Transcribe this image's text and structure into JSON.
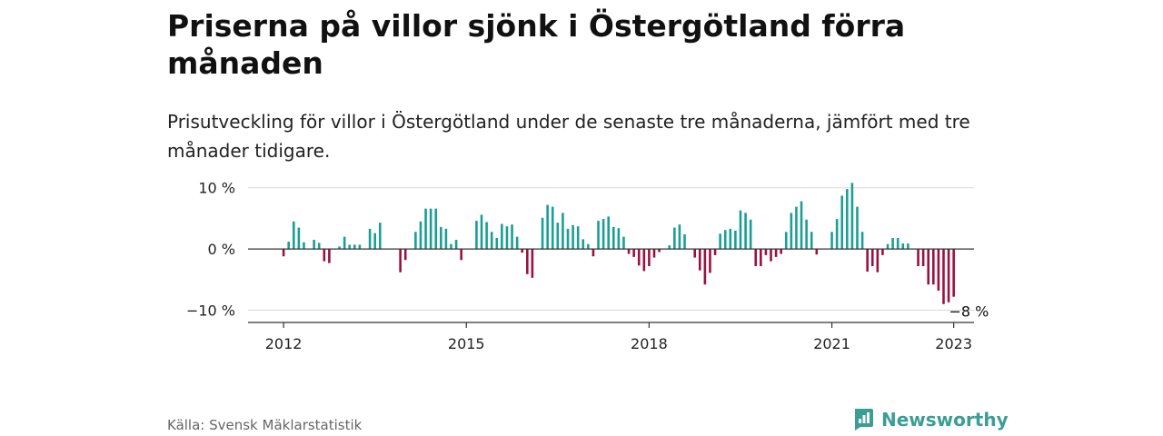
{
  "title": "Priserna på villor sjönk i Östergötland förra månaden",
  "subtitle": "Prisutveckling för villor i Östergötland under de senaste tre månaderna, jämfört med tre månader tidigare.",
  "source": "Källa: Svensk Mäklarstatistik",
  "brand": "Newsworthy",
  "colors": {
    "positive": "#1a9e95",
    "negative": "#99123f",
    "brand": "#3a9e96"
  },
  "chart_data": {
    "type": "bar",
    "xlim": [
      "2011-06",
      "2023-05"
    ],
    "ylim": [
      -12,
      11
    ],
    "y_ticks": [
      {
        "value": 10,
        "label": "10 %"
      },
      {
        "value": 0,
        "label": "0 %"
      },
      {
        "value": -10,
        "label": "−10 %"
      }
    ],
    "x_ticks": [
      {
        "value": "2012-01",
        "label": "2012"
      },
      {
        "value": "2015-01",
        "label": "2015"
      },
      {
        "value": "2018-01",
        "label": "2018"
      },
      {
        "value": "2021-01",
        "label": "2021"
      },
      {
        "value": "2023-01",
        "label": "2023"
      }
    ],
    "grid": true,
    "annotation": {
      "month": "2023-04",
      "value": -8,
      "text": "−8 %"
    },
    "values": [
      {
        "month": "2012-01",
        "value": -1.2
      },
      {
        "month": "2012-02",
        "value": 1.2
      },
      {
        "month": "2012-03",
        "value": 4.5
      },
      {
        "month": "2012-04",
        "value": 3.5
      },
      {
        "month": "2012-05",
        "value": 1.1
      },
      {
        "month": "2012-07",
        "value": 1.5
      },
      {
        "month": "2012-08",
        "value": 1.0
      },
      {
        "month": "2012-09",
        "value": -2.0
      },
      {
        "month": "2012-10",
        "value": -2.3
      },
      {
        "month": "2012-12",
        "value": 0.4
      },
      {
        "month": "2013-01",
        "value": 2.0
      },
      {
        "month": "2013-02",
        "value": 0.7
      },
      {
        "month": "2013-03",
        "value": 0.7
      },
      {
        "month": "2013-04",
        "value": 0.7
      },
      {
        "month": "2013-06",
        "value": 3.3
      },
      {
        "month": "2013-07",
        "value": 2.6
      },
      {
        "month": "2013-08",
        "value": 4.3
      },
      {
        "month": "2013-12",
        "value": -3.8
      },
      {
        "month": "2014-01",
        "value": -1.8
      },
      {
        "month": "2014-03",
        "value": 2.8
      },
      {
        "month": "2014-04",
        "value": 4.5
      },
      {
        "month": "2014-05",
        "value": 6.6
      },
      {
        "month": "2014-06",
        "value": 6.6
      },
      {
        "month": "2014-07",
        "value": 6.6
      },
      {
        "month": "2014-08",
        "value": 3.6
      },
      {
        "month": "2014-09",
        "value": 3.3
      },
      {
        "month": "2014-10",
        "value": 0.8
      },
      {
        "month": "2014-11",
        "value": 1.5
      },
      {
        "month": "2014-12",
        "value": -1.8
      },
      {
        "month": "2015-03",
        "value": 4.6
      },
      {
        "month": "2015-04",
        "value": 5.6
      },
      {
        "month": "2015-05",
        "value": 4.4
      },
      {
        "month": "2015-06",
        "value": 2.8
      },
      {
        "month": "2015-07",
        "value": 1.8
      },
      {
        "month": "2015-08",
        "value": 4.1
      },
      {
        "month": "2015-09",
        "value": 3.7
      },
      {
        "month": "2015-10",
        "value": 4.0
      },
      {
        "month": "2015-11",
        "value": 2.0
      },
      {
        "month": "2015-12",
        "value": -0.6
      },
      {
        "month": "2016-01",
        "value": -4.1
      },
      {
        "month": "2016-02",
        "value": -4.7
      },
      {
        "month": "2016-04",
        "value": 5.1
      },
      {
        "month": "2016-05",
        "value": 7.2
      },
      {
        "month": "2016-06",
        "value": 6.9
      },
      {
        "month": "2016-07",
        "value": 4.3
      },
      {
        "month": "2016-08",
        "value": 5.9
      },
      {
        "month": "2016-09",
        "value": 3.3
      },
      {
        "month": "2016-10",
        "value": 3.9
      },
      {
        "month": "2016-11",
        "value": 3.7
      },
      {
        "month": "2016-12",
        "value": 1.6
      },
      {
        "month": "2017-01",
        "value": 0.8
      },
      {
        "month": "2017-02",
        "value": -1.2
      },
      {
        "month": "2017-03",
        "value": 4.6
      },
      {
        "month": "2017-04",
        "value": 4.9
      },
      {
        "month": "2017-05",
        "value": 5.3
      },
      {
        "month": "2017-06",
        "value": 3.6
      },
      {
        "month": "2017-07",
        "value": 3.4
      },
      {
        "month": "2017-08",
        "value": 2.0
      },
      {
        "month": "2017-09",
        "value": -0.8
      },
      {
        "month": "2017-10",
        "value": -1.3
      },
      {
        "month": "2017-11",
        "value": -2.7
      },
      {
        "month": "2017-12",
        "value": -3.6
      },
      {
        "month": "2018-01",
        "value": -2.8
      },
      {
        "month": "2018-02",
        "value": -1.4
      },
      {
        "month": "2018-03",
        "value": -0.5
      },
      {
        "month": "2018-05",
        "value": 0.6
      },
      {
        "month": "2018-06",
        "value": 3.5
      },
      {
        "month": "2018-07",
        "value": 4.0
      },
      {
        "month": "2018-08",
        "value": 2.4
      },
      {
        "month": "2018-10",
        "value": -1.4
      },
      {
        "month": "2018-11",
        "value": -3.5
      },
      {
        "month": "2018-12",
        "value": -5.8
      },
      {
        "month": "2019-01",
        "value": -3.9
      },
      {
        "month": "2019-02",
        "value": -1.0
      },
      {
        "month": "2019-03",
        "value": 2.5
      },
      {
        "month": "2019-04",
        "value": 3.1
      },
      {
        "month": "2019-05",
        "value": 3.3
      },
      {
        "month": "2019-06",
        "value": 3.0
      },
      {
        "month": "2019-07",
        "value": 6.3
      },
      {
        "month": "2019-08",
        "value": 5.9
      },
      {
        "month": "2019-09",
        "value": 4.8
      },
      {
        "month": "2019-10",
        "value": -2.8
      },
      {
        "month": "2019-11",
        "value": -2.8
      },
      {
        "month": "2019-12",
        "value": -1.0
      },
      {
        "month": "2020-01",
        "value": -2.0
      },
      {
        "month": "2020-02",
        "value": -1.3
      },
      {
        "month": "2020-03",
        "value": -0.8
      },
      {
        "month": "2020-04",
        "value": 2.8
      },
      {
        "month": "2020-05",
        "value": 5.9
      },
      {
        "month": "2020-06",
        "value": 6.9
      },
      {
        "month": "2020-07",
        "value": 7.8
      },
      {
        "month": "2020-08",
        "value": 4.8
      },
      {
        "month": "2020-09",
        "value": 2.8
      },
      {
        "month": "2020-10",
        "value": -0.9
      },
      {
        "month": "2021-01",
        "value": 2.8
      },
      {
        "month": "2021-02",
        "value": 4.9
      },
      {
        "month": "2021-03",
        "value": 8.7
      },
      {
        "month": "2021-04",
        "value": 9.8
      },
      {
        "month": "2021-05",
        "value": 10.8
      },
      {
        "month": "2021-06",
        "value": 6.9
      },
      {
        "month": "2021-07",
        "value": 2.8
      },
      {
        "month": "2021-08",
        "value": -3.7
      },
      {
        "month": "2021-09",
        "value": -2.8
      },
      {
        "month": "2021-10",
        "value": -3.8
      },
      {
        "month": "2021-11",
        "value": -1.0
      },
      {
        "month": "2021-12",
        "value": 0.8
      },
      {
        "month": "2022-01",
        "value": 1.8
      },
      {
        "month": "2022-02",
        "value": 1.8
      },
      {
        "month": "2022-03",
        "value": 0.9
      },
      {
        "month": "2022-04",
        "value": 0.9
      },
      {
        "month": "2022-06",
        "value": -2.8
      },
      {
        "month": "2022-07",
        "value": -2.8
      },
      {
        "month": "2022-08",
        "value": -5.8
      },
      {
        "month": "2022-09",
        "value": -5.8
      },
      {
        "month": "2022-10",
        "value": -6.8
      },
      {
        "month": "2022-11",
        "value": -9.0
      },
      {
        "month": "2022-12",
        "value": -8.7
      },
      {
        "month": "2023-01",
        "value": -7.8
      }
    ]
  }
}
